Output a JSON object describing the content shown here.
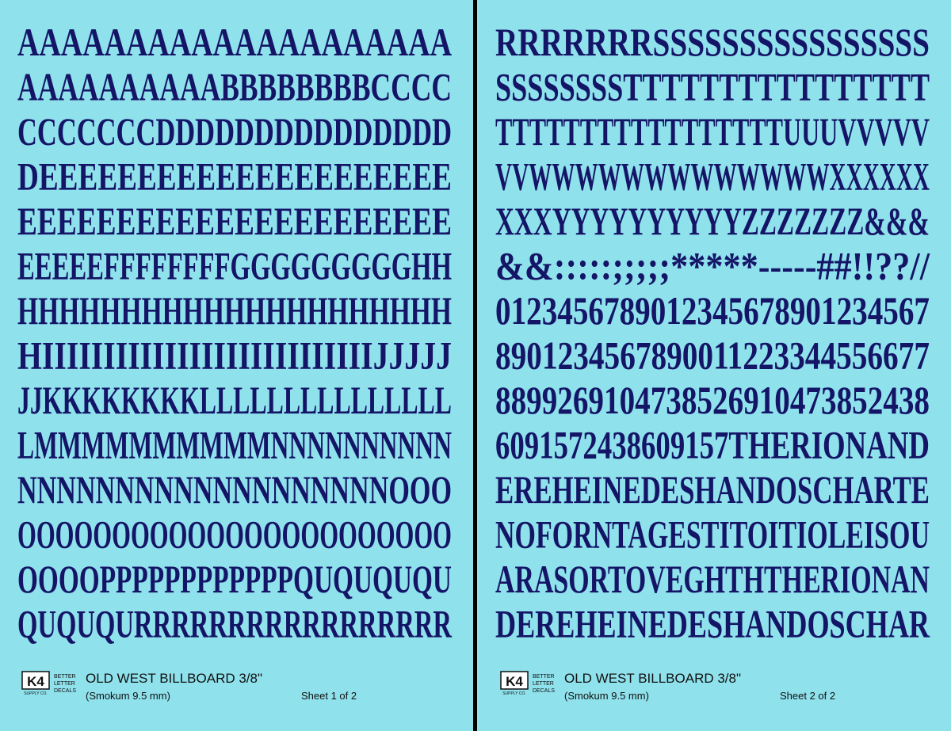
{
  "sheets": [
    {
      "rows": [
        "AAAAAAAAAAAAAAAAAAAA",
        "AAAAAAAAAABBBBBBBBCCCC",
        "CCCCCCCDDDDDDDDDDDDDDD",
        "DEEEEEEEEEEEEEEEEEEEEE",
        "EEEEEEEEEEEEEEEEEEEEEE",
        "EEEEEFFFFFFFFGGGGGGGGGHH",
        "HHHHHHHHHHHHHHHHHHHHH",
        "HIIIIIIIIIIIIIIIIIIIIIIIIIIIJJJJJ",
        "JJKKKKKKKKLLLLLLLLLLLLLLL",
        "LMMMMMMMMMMNNNNNNNNNN",
        "NNNNNNNNNNNNNNNNNNNOOO",
        "OOOOOOOOOOOOOOOOOOOOOOO",
        "OOOOPPPPPPPPPPPPQUQUQUQU",
        "QUQUQURRRRRRRRRRRRRRRRR"
      ],
      "footer": {
        "logo": "K4",
        "logo_sub": "SUPPLY CO.",
        "tagline": [
          "BETTER",
          "LETTER",
          "DECALS"
        ],
        "title": "OLD WEST BILLBOARD 3/8\"",
        "subtitle": "(Smokum 9.5 mm)",
        "sheet": "Sheet 1 of 2"
      }
    },
    {
      "rows": [
        "RRRRRRRSSSSSSSSSSSSSSSS",
        "SSSSSSSSTTTTTTTTTTTTTTTT",
        "TTTTTTTTTTTTTTTTTUUUVVVVV",
        "VVWWWWWWWWWWWWWXXXXXX",
        "XXXYYYYYYYYYYZZZZZZZ&&&",
        "&&:::::;;;;;*****-----##!!??//",
        "0123456789012345678901234567",
        "8901234567890011223344556677",
        "8899269104738526910473852438",
        "6091572438609157THERIONAND",
        "EREHEINEDESHANDOSCHARTE",
        "NOFORNTAGESTITOITIOLEISOU",
        "ARASORTOVEGHTHTHERIONAN",
        "DEREHEINEDESHANDOSCHAR"
      ],
      "footer": {
        "logo": "K4",
        "logo_sub": "SUPPLY CO.",
        "tagline": [
          "BETTER",
          "LETTER",
          "DECALS"
        ],
        "title": "OLD WEST BILLBOARD 3/8\"",
        "subtitle": "(Smokum 9.5 mm)",
        "sheet": "Sheet 2 of 2"
      }
    }
  ]
}
